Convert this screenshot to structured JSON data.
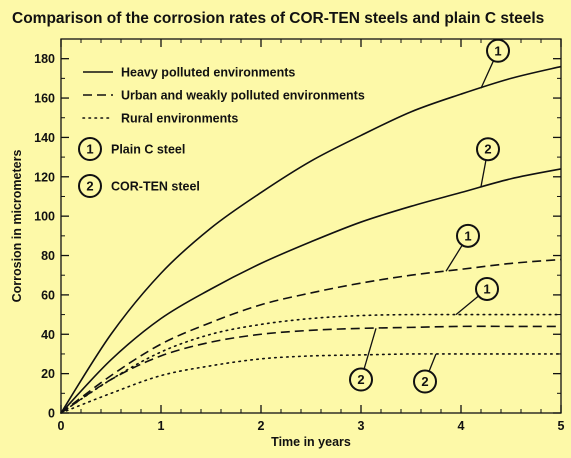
{
  "chart_data": {
    "type": "line",
    "title": "Comparison of the corrosion rates of COR-TEN steels and plain C steels",
    "xlabel": "Time in years",
    "ylabel": "Corrosion in micrometers",
    "xlim": [
      0,
      5
    ],
    "ylim": [
      0,
      190
    ],
    "x_ticks": [
      "0",
      "1",
      "2",
      "3",
      "4",
      "5"
    ],
    "y_ticks": [
      "0",
      "20",
      "40",
      "60",
      "80",
      "100",
      "120",
      "140",
      "160",
      "180"
    ],
    "grid": false,
    "legend_position": "top-left",
    "legend": {
      "line_styles": [
        {
          "style": "solid",
          "label": "Heavy polluted environments"
        },
        {
          "style": "dashed",
          "label": "Urban and weakly polluted environments"
        },
        {
          "style": "dotted",
          "label": "Rural environments"
        }
      ],
      "markers": [
        {
          "number": "1",
          "label": "Plain C steel"
        },
        {
          "number": "2",
          "label": "COR-TEN steel"
        }
      ]
    },
    "series": [
      {
        "environment": "Heavy polluted environments",
        "steel": "1",
        "style": "solid",
        "x": [
          0,
          0.5,
          1,
          1.5,
          2,
          2.5,
          3,
          3.5,
          4,
          4.5,
          5
        ],
        "y": [
          0,
          40,
          71,
          94,
          112,
          128,
          141,
          153,
          162,
          170,
          176
        ]
      },
      {
        "environment": "Heavy polluted environments",
        "steel": "2",
        "style": "solid",
        "x": [
          0,
          0.5,
          1,
          1.5,
          2,
          2.5,
          3,
          3.5,
          4,
          4.5,
          5
        ],
        "y": [
          0,
          27,
          48,
          63,
          76,
          87,
          97,
          105,
          112,
          119,
          124
        ]
      },
      {
        "environment": "Urban and weakly polluted environments",
        "steel": "1",
        "style": "dashed",
        "x": [
          0,
          0.5,
          1,
          1.5,
          2,
          2.5,
          3,
          3.5,
          4,
          4.5,
          5
        ],
        "y": [
          0,
          19,
          35,
          46,
          55,
          61,
          66,
          70,
          73,
          76,
          78
        ]
      },
      {
        "environment": "Urban and weakly polluted environments",
        "steel": "2",
        "style": "dashed",
        "x": [
          0,
          0.5,
          1,
          1.5,
          2,
          2.5,
          3,
          3.5,
          4,
          4.5,
          5
        ],
        "y": [
          0,
          17,
          29,
          36,
          40,
          42,
          43,
          43.5,
          44,
          44,
          44
        ]
      },
      {
        "environment": "Rural environments",
        "steel": "1",
        "style": "dotted",
        "x": [
          0,
          0.5,
          1,
          1.5,
          2,
          2.5,
          3,
          3.5,
          4,
          4.5,
          5
        ],
        "y": [
          0,
          17,
          31,
          40,
          45,
          48,
          49.5,
          50,
          50,
          50,
          50
        ]
      },
      {
        "environment": "Rural environments",
        "steel": "2",
        "style": "dotted",
        "x": [
          0,
          0.5,
          1,
          1.5,
          2,
          2.5,
          3,
          3.5,
          4,
          4.5,
          5
        ],
        "y": [
          0,
          10,
          19,
          24,
          27.5,
          29,
          29.5,
          30,
          30,
          30,
          30
        ]
      }
    ],
    "annotations": [
      {
        "label": "1",
        "series": 0,
        "point_x": 4.2,
        "point_y": 165,
        "label_x": 4.37,
        "label_y": 184
      },
      {
        "label": "2",
        "series": 1,
        "point_x": 4.2,
        "point_y": 115,
        "label_x": 4.27,
        "label_y": 134
      },
      {
        "label": "1",
        "series": 2,
        "point_x": 3.85,
        "point_y": 72,
        "label_x": 4.07,
        "label_y": 90
      },
      {
        "label": "1",
        "series": 4,
        "point_x": 3.95,
        "point_y": 50,
        "label_x": 4.26,
        "label_y": 63
      },
      {
        "label": "2",
        "series": 3,
        "point_x": 3.15,
        "point_y": 43,
        "label_x": 3.0,
        "label_y": 17
      },
      {
        "label": "2",
        "series": 5,
        "point_x": 3.75,
        "point_y": 30,
        "label_x": 3.64,
        "label_y": 16
      }
    ]
  }
}
